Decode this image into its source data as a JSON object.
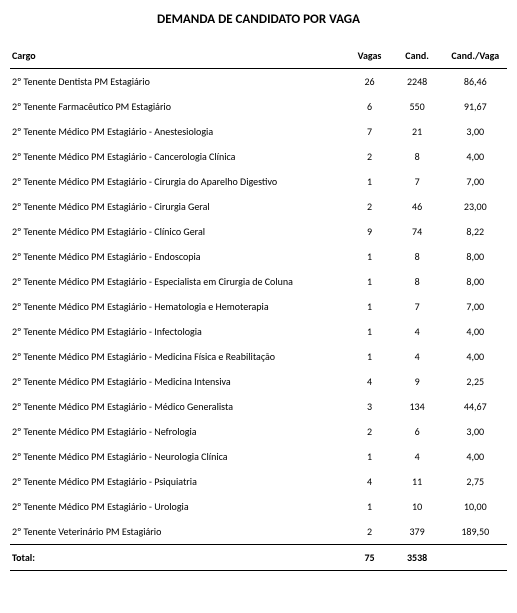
{
  "title": "DEMANDA DE CANDIDATO POR VAGA",
  "columns": {
    "cargo": "Cargo",
    "vagas": "Vagas",
    "cand": "Cand.",
    "ratio": "Cand./Vaga"
  },
  "rows": [
    {
      "cargo": "2º Tenente Dentista PM Estagiário",
      "vagas": "26",
      "cand": "2248",
      "ratio": "86,46"
    },
    {
      "cargo": "2º Tenente Farmacêutico PM Estagiário",
      "vagas": "6",
      "cand": "550",
      "ratio": "91,67"
    },
    {
      "cargo": "2º Tenente Médico PM Estagiário - Anestesiologia",
      "vagas": "7",
      "cand": "21",
      "ratio": "3,00"
    },
    {
      "cargo": "2º Tenente Médico PM Estagiário - Cancerologia Clínica",
      "vagas": "2",
      "cand": "8",
      "ratio": "4,00"
    },
    {
      "cargo": "2º Tenente Médico PM Estagiário - Cirurgia do Aparelho Digestivo",
      "vagas": "1",
      "cand": "7",
      "ratio": "7,00"
    },
    {
      "cargo": "2º Tenente Médico PM Estagiário - Cirurgia Geral",
      "vagas": "2",
      "cand": "46",
      "ratio": "23,00"
    },
    {
      "cargo": "2º Tenente Médico PM Estagiário - Clínico Geral",
      "vagas": "9",
      "cand": "74",
      "ratio": "8,22"
    },
    {
      "cargo": "2º Tenente Médico PM Estagiário - Endoscopia",
      "vagas": "1",
      "cand": "8",
      "ratio": "8,00"
    },
    {
      "cargo": "2º Tenente Médico PM Estagiário - Especialista em Cirurgia de Coluna",
      "vagas": "1",
      "cand": "8",
      "ratio": "8,00"
    },
    {
      "cargo": "2º Tenente Médico PM Estagiário - Hematologia e Hemoterapia",
      "vagas": "1",
      "cand": "7",
      "ratio": "7,00"
    },
    {
      "cargo": "2º Tenente Médico PM Estagiário - Infectologia",
      "vagas": "1",
      "cand": "4",
      "ratio": "4,00"
    },
    {
      "cargo": "2º Tenente Médico PM Estagiário - Medicina Física e Reabilitação",
      "vagas": "1",
      "cand": "4",
      "ratio": "4,00"
    },
    {
      "cargo": "2º Tenente Médico PM Estagiário - Medicina Intensiva",
      "vagas": "4",
      "cand": "9",
      "ratio": "2,25"
    },
    {
      "cargo": "2º Tenente Médico PM Estagiário - Médico Generalista",
      "vagas": "3",
      "cand": "134",
      "ratio": "44,67"
    },
    {
      "cargo": "2º Tenente Médico PM Estagiário - Nefrologia",
      "vagas": "2",
      "cand": "6",
      "ratio": "3,00"
    },
    {
      "cargo": "2º Tenente Médico PM Estagiário - Neurologia Clínica",
      "vagas": "1",
      "cand": "4",
      "ratio": "4,00"
    },
    {
      "cargo": "2º Tenente Médico PM Estagiário - Psiquiatria",
      "vagas": "4",
      "cand": "11",
      "ratio": "2,75"
    },
    {
      "cargo": "2º Tenente Médico PM Estagiário - Urologia",
      "vagas": "1",
      "cand": "10",
      "ratio": "10,00"
    },
    {
      "cargo": "2º Tenente Veterinário PM Estagiário",
      "vagas": "2",
      "cand": "379",
      "ratio": "189,50"
    }
  ],
  "total": {
    "label": "Total:",
    "vagas": "75",
    "cand": "3538",
    "ratio": ""
  }
}
